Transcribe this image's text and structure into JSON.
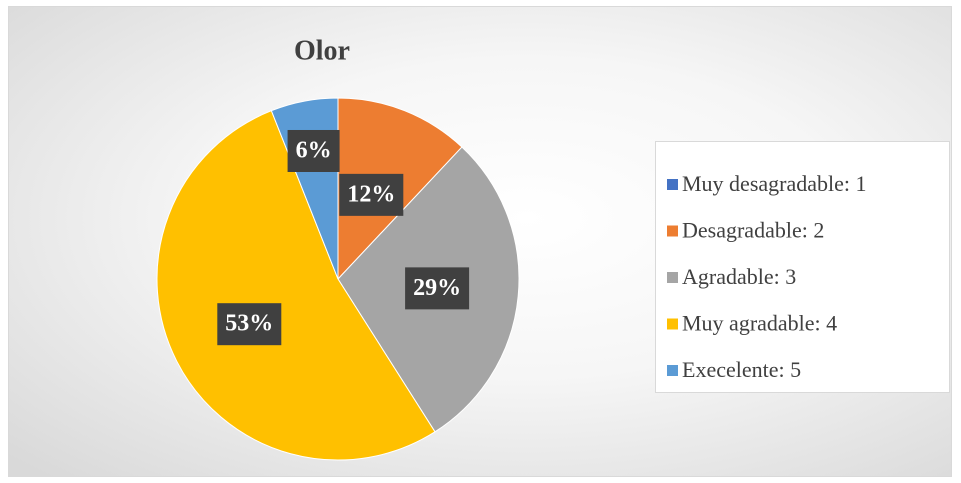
{
  "chart_data": {
    "type": "pie",
    "title": "Olor",
    "categories": [
      "Muy desagradable: 1",
      "Desagradable: 2",
      "Agradable: 3",
      "Muy agradable: 4",
      "Execelente: 5"
    ],
    "values": [
      0,
      12,
      29,
      53,
      6
    ],
    "value_labels": [
      null,
      "12%",
      "29%",
      "53%",
      "6%"
    ],
    "colors": [
      "#4472c4",
      "#ed7d31",
      "#a5a5a5",
      "#ffc000",
      "#5b9bd5"
    ],
    "legend": "right"
  }
}
